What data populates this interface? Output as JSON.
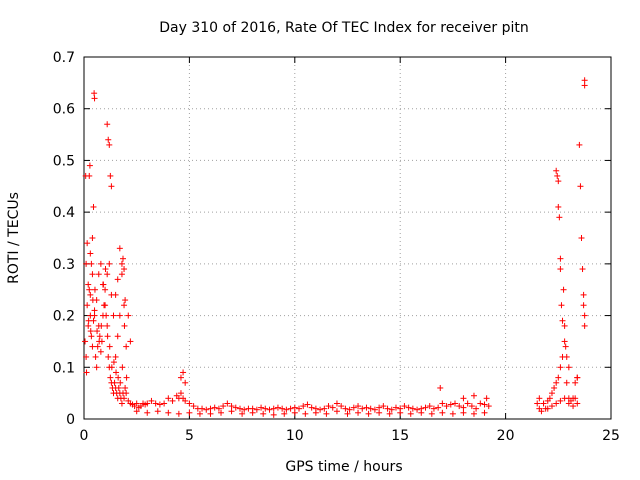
{
  "chart_data": {
    "type": "scatter",
    "title": "Day 310 of 2016, Rate Of TEC Index for receiver pitn",
    "xlabel": "GPS time / hours",
    "ylabel": "ROTI / TECUs",
    "xlim": [
      0,
      25
    ],
    "ylim": [
      0,
      0.7
    ],
    "xticks": [
      0,
      5,
      10,
      15,
      20,
      25
    ],
    "yticks": [
      0,
      0.1,
      0.2,
      0.3,
      0.4,
      0.5,
      0.6,
      0.7
    ],
    "xtick_labels": [
      "0",
      "5",
      "10",
      "15",
      "20",
      "25"
    ],
    "ytick_labels": [
      "0",
      "0.1",
      "0.2",
      "0.3",
      "0.4",
      "0.5",
      "0.6",
      "0.7"
    ],
    "grid": true,
    "marker": "+",
    "color": "#ff0000",
    "series": [
      {
        "x": [
          0.05,
          0.1,
          0.15,
          0.2,
          0.25,
          0.3,
          0.35,
          0.4,
          0.45,
          0.5,
          0.55,
          0.6,
          0.65,
          0.7,
          0.75,
          0.8,
          0.85,
          0.9,
          0.95,
          1.0,
          1.05,
          1.1,
          1.15,
          1.2,
          1.25,
          1.3,
          1.35,
          1.4,
          1.45,
          1.5,
          1.55,
          1.6,
          1.65,
          1.7,
          1.75,
          1.8,
          1.85,
          1.9,
          1.95,
          2.0,
          0.1,
          0.2,
          0.3,
          0.4,
          0.5,
          0.6,
          0.7,
          0.8,
          0.9,
          1.0,
          1.1,
          1.2,
          1.3,
          1.4,
          1.5,
          1.6,
          1.7,
          1.8,
          1.9,
          2.0,
          0.12,
          0.22,
          0.32,
          0.42,
          0.52,
          0.62,
          0.72,
          0.82,
          0.92,
          1.02,
          1.12,
          1.22,
          1.32,
          1.42,
          1.52,
          1.62,
          1.72,
          1.82,
          1.92,
          2.02,
          0.08,
          0.15,
          0.25,
          0.28,
          0.45,
          0.48,
          0.5,
          1.1,
          1.15,
          1.2,
          1.25,
          1.3,
          1.85,
          1.9,
          1.95,
          0.3,
          0.35,
          0.4,
          1.5,
          1.6,
          1.7,
          1.8,
          2.1,
          2.2,
          2.1,
          2.2,
          2.3,
          2.4,
          2.5,
          2.6,
          2.7,
          2.8,
          2.9,
          3.0,
          3.2,
          3.4,
          3.6,
          3.8,
          4.0,
          4.2,
          4.4,
          4.5,
          4.6,
          4.7,
          4.8,
          5.0,
          5.2,
          5.4,
          5.6,
          5.8,
          6.0,
          6.2,
          6.4,
          6.6,
          6.8,
          7.0,
          7.2,
          7.4,
          7.6,
          7.8,
          8.0,
          8.2,
          8.4,
          8.6,
          8.8,
          9.0,
          9.2,
          9.4,
          9.6,
          9.8,
          10.0,
          10.2,
          10.4,
          10.6,
          10.8,
          11.0,
          11.2,
          11.4,
          11.6,
          11.8,
          12.0,
          12.2,
          12.4,
          12.6,
          12.8,
          13.0,
          13.2,
          13.4,
          13.6,
          13.8,
          14.0,
          14.2,
          14.4,
          14.6,
          14.8,
          15.0,
          15.2,
          15.4,
          15.6,
          15.8,
          16.0,
          16.2,
          16.4,
          16.6,
          16.8,
          17.0,
          17.2,
          17.4,
          17.6,
          17.8,
          18.0,
          18.2,
          18.4,
          18.6,
          18.8,
          19.0,
          19.2,
          2.5,
          3.0,
          3.5,
          4.0,
          4.5,
          5.0,
          5.5,
          6.0,
          6.5,
          7.0,
          7.5,
          8.0,
          8.5,
          9.0,
          9.5,
          10.0,
          10.5,
          11.0,
          11.5,
          12.0,
          12.5,
          13.0,
          13.5,
          14.0,
          14.5,
          15.0,
          15.5,
          16.0,
          16.5,
          17.0,
          17.5,
          18.0,
          18.5,
          19.0,
          4.6,
          4.7,
          4.8,
          16.9,
          18.0,
          18.5,
          19.1,
          21.5,
          21.6,
          21.7,
          21.8,
          21.9,
          22.0,
          22.1,
          22.2,
          22.3,
          22.4,
          22.5,
          22.6,
          22.7,
          22.8,
          22.9,
          23.0,
          23.1,
          23.2,
          23.3,
          23.4,
          21.6,
          21.8,
          22.0,
          22.2,
          22.4,
          22.6,
          22.8,
          23.0,
          23.2,
          23.4,
          22.4,
          22.45,
          22.5,
          22.5,
          22.55,
          22.6,
          22.6,
          22.65,
          22.7,
          22.75,
          22.8,
          22.85,
          22.9,
          23.0,
          23.3,
          23.4,
          23.5,
          23.55,
          23.6,
          23.65,
          23.7,
          23.7,
          23.75,
          23.75
        ],
        "y": [
          0.15,
          0.12,
          0.22,
          0.18,
          0.25,
          0.2,
          0.16,
          0.14,
          0.19,
          0.21,
          0.12,
          0.1,
          0.14,
          0.18,
          0.16,
          0.13,
          0.15,
          0.2,
          0.22,
          0.25,
          0.2,
          0.18,
          0.12,
          0.1,
          0.08,
          0.07,
          0.06,
          0.05,
          0.07,
          0.06,
          0.05,
          0.04,
          0.06,
          0.05,
          0.04,
          0.03,
          0.05,
          0.04,
          0.06,
          0.05,
          0.3,
          0.26,
          0.24,
          0.28,
          0.2,
          0.23,
          0.28,
          0.3,
          0.26,
          0.22,
          0.28,
          0.3,
          0.24,
          0.2,
          0.12,
          0.16,
          0.2,
          0.28,
          0.22,
          0.14,
          0.09,
          0.19,
          0.17,
          0.23,
          0.25,
          0.17,
          0.15,
          0.18,
          0.26,
          0.29,
          0.16,
          0.14,
          0.1,
          0.11,
          0.09,
          0.08,
          0.07,
          0.1,
          0.18,
          0.08,
          0.47,
          0.34,
          0.47,
          0.49,
          0.41,
          0.63,
          0.62,
          0.57,
          0.54,
          0.53,
          0.47,
          0.45,
          0.31,
          0.29,
          0.23,
          0.32,
          0.3,
          0.35,
          0.24,
          0.27,
          0.33,
          0.3,
          0.2,
          0.15,
          0.035,
          0.03,
          0.028,
          0.025,
          0.03,
          0.022,
          0.025,
          0.03,
          0.028,
          0.03,
          0.035,
          0.03,
          0.028,
          0.03,
          0.04,
          0.035,
          0.045,
          0.04,
          0.05,
          0.04,
          0.035,
          0.03,
          0.025,
          0.02,
          0.02,
          0.018,
          0.02,
          0.022,
          0.02,
          0.025,
          0.03,
          0.025,
          0.022,
          0.02,
          0.018,
          0.02,
          0.02,
          0.018,
          0.022,
          0.02,
          0.018,
          0.02,
          0.022,
          0.02,
          0.018,
          0.02,
          0.022,
          0.02,
          0.025,
          0.028,
          0.022,
          0.02,
          0.018,
          0.02,
          0.025,
          0.022,
          0.03,
          0.025,
          0.02,
          0.018,
          0.022,
          0.025,
          0.02,
          0.022,
          0.02,
          0.018,
          0.022,
          0.025,
          0.02,
          0.018,
          0.022,
          0.02,
          0.025,
          0.022,
          0.02,
          0.018,
          0.02,
          0.022,
          0.025,
          0.02,
          0.022,
          0.03,
          0.025,
          0.028,
          0.03,
          0.025,
          0.022,
          0.03,
          0.025,
          0.02,
          0.03,
          0.028,
          0.025,
          0.015,
          0.012,
          0.015,
          0.012,
          0.01,
          0.012,
          0.01,
          0.01,
          0.012,
          0.015,
          0.01,
          0.012,
          0.01,
          0.008,
          0.01,
          0.012,
          0.01,
          0.012,
          0.01,
          0.015,
          0.01,
          0.012,
          0.01,
          0.012,
          0.01,
          0.012,
          0.01,
          0.012,
          0.01,
          0.012,
          0.01,
          0.012,
          0.01,
          0.012,
          0.08,
          0.09,
          0.07,
          0.06,
          0.04,
          0.045,
          0.04,
          0.03,
          0.02,
          0.015,
          0.03,
          0.02,
          0.035,
          0.04,
          0.05,
          0.06,
          0.07,
          0.08,
          0.1,
          0.12,
          0.15,
          0.07,
          0.04,
          0.035,
          0.04,
          0.07,
          0.08,
          0.04,
          0.03,
          0.02,
          0.025,
          0.03,
          0.035,
          0.04,
          0.03,
          0.025,
          0.03,
          0.48,
          0.47,
          0.46,
          0.41,
          0.39,
          0.31,
          0.29,
          0.22,
          0.19,
          0.25,
          0.18,
          0.14,
          0.12,
          0.1,
          0.04,
          0.08,
          0.53,
          0.45,
          0.35,
          0.29,
          0.24,
          0.22,
          0.2,
          0.18
        ]
      },
      {
        "x": [
          23.75,
          23.75
        ],
        "y": [
          0.655,
          0.645
        ]
      }
    ]
  }
}
